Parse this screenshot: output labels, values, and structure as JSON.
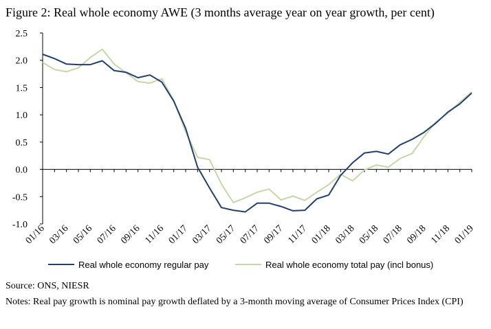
{
  "figure": {
    "title": "Figure 2: Real whole economy AWE (3 months average year on year growth, per cent)",
    "source": "Source: ONS, NIESR",
    "notes": "Notes: Real pay growth is nominal pay growth deflated by a 3-month moving average of Consumer Prices Index (CPI)"
  },
  "chart_data": {
    "type": "line",
    "title": "Figure 2: Real whole economy AWE (3 months average year on year growth, per cent)",
    "xlabel": "",
    "ylabel": "",
    "ylim": [
      -1.0,
      2.5
    ],
    "yticks": [
      "2.5",
      "2.0",
      "1.5",
      "1.0",
      "0.5",
      "0.0",
      "-0.5",
      "-1.0"
    ],
    "ytick_values": [
      2.5,
      2.0,
      1.5,
      1.0,
      0.5,
      0.0,
      -0.5,
      -1.0
    ],
    "x": [
      "01/16",
      "02/16",
      "03/16",
      "04/16",
      "05/16",
      "06/16",
      "07/16",
      "08/16",
      "09/16",
      "10/16",
      "11/16",
      "12/16",
      "01/17",
      "02/17",
      "03/17",
      "04/17",
      "05/17",
      "06/17",
      "07/17",
      "08/17",
      "09/17",
      "10/17",
      "11/17",
      "12/17",
      "01/18",
      "02/18",
      "03/18",
      "04/18",
      "05/18",
      "06/18",
      "07/18",
      "08/18",
      "09/18",
      "10/18",
      "11/18",
      "12/18",
      "01/19"
    ],
    "xtick_labels": [
      "01/16",
      "03/16",
      "05/16",
      "07/16",
      "09/16",
      "11/16",
      "01/17",
      "03/17",
      "05/17",
      "07/17",
      "09/17",
      "11/17",
      "01/18",
      "03/18",
      "05/18",
      "07/18",
      "09/18",
      "11/18",
      "01/19"
    ],
    "grid": false,
    "legend_position": "bottom",
    "series": [
      {
        "name": "Real whole economy regular pay",
        "color": "#1f3f73",
        "values": [
          2.11,
          2.03,
          1.93,
          1.92,
          1.92,
          1.99,
          1.81,
          1.78,
          1.68,
          1.73,
          1.6,
          1.25,
          0.75,
          0.04,
          -0.34,
          -0.7,
          -0.75,
          -0.78,
          -0.62,
          -0.62,
          -0.68,
          -0.76,
          -0.75,
          -0.54,
          -0.47,
          -0.11,
          0.12,
          0.3,
          0.33,
          0.28,
          0.45,
          0.55,
          0.68,
          0.85,
          1.05,
          1.2,
          1.4
        ]
      },
      {
        "name": "Real whole economy total pay (incl bonus)",
        "color": "#c4d7a4",
        "values": [
          1.96,
          1.83,
          1.79,
          1.86,
          2.05,
          2.2,
          1.93,
          1.77,
          1.61,
          1.58,
          1.66,
          1.26,
          0.69,
          0.22,
          0.18,
          -0.27,
          -0.61,
          -0.52,
          -0.42,
          -0.36,
          -0.56,
          -0.49,
          -0.57,
          -0.42,
          -0.28,
          -0.09,
          -0.21,
          -0.01,
          0.08,
          0.04,
          0.2,
          0.29,
          0.6,
          0.87,
          1.03,
          1.23,
          1.42
        ]
      }
    ]
  }
}
